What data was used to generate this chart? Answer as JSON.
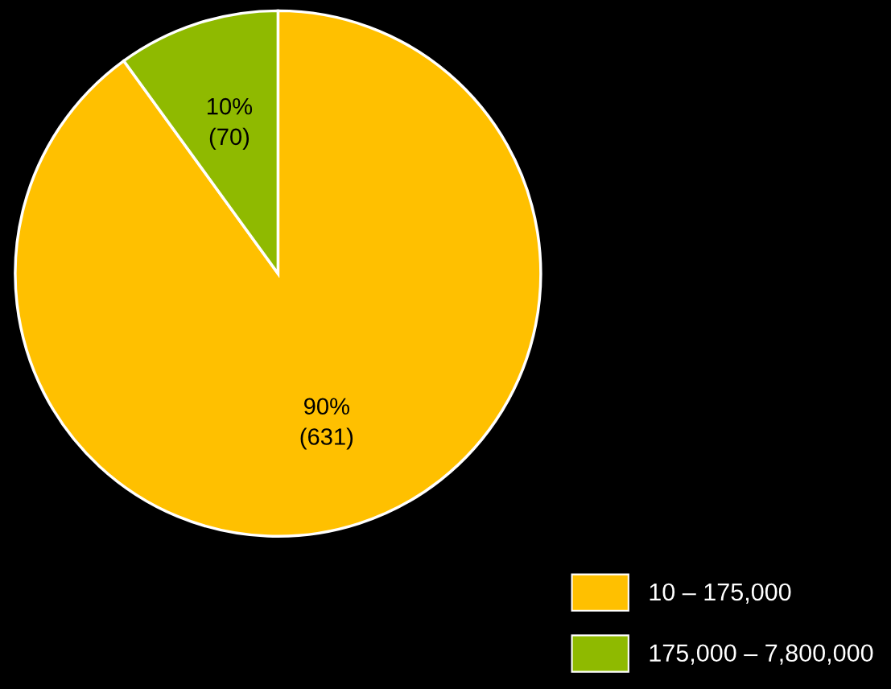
{
  "chart_data": {
    "type": "pie",
    "categories": [
      "10 – 175,000",
      "175,000 – 7,800,000"
    ],
    "values": [
      631,
      70
    ],
    "colors": [
      "#ffc000",
      "#8fba00"
    ],
    "value_labels": [
      "90%\n(631)",
      "10%\n(70)"
    ],
    "legend": "bottom right"
  }
}
